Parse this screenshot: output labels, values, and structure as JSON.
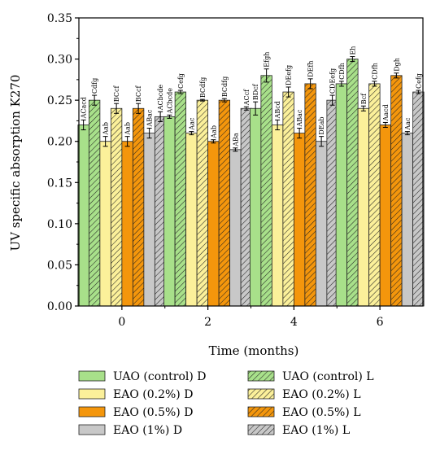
{
  "chart_data": {
    "type": "bar",
    "xlabel": "Time (months)",
    "ylabel": "UV specific absorption K270",
    "ylim": [
      0,
      0.35
    ],
    "yticks": [
      0.0,
      0.05,
      0.1,
      0.15,
      0.2,
      0.25,
      0.3,
      0.35
    ],
    "categories": [
      "0",
      "2",
      "4",
      "6"
    ],
    "legend_position": "bottom",
    "grid": false,
    "series": [
      {
        "name": "UAO (control) D",
        "color": "#a8e08a",
        "pattern": "solid",
        "values": [
          0.22,
          0.23,
          0.24,
          0.27
        ],
        "errors": [
          0.006,
          0.002,
          0.008,
          0.003
        ],
        "labels": [
          "ACacd",
          "ACbcde",
          "BDcf",
          "CDfh"
        ]
      },
      {
        "name": "UAO (control) L",
        "color": "#a8e08a",
        "pattern": "hatch",
        "values": [
          0.25,
          0.26,
          0.28,
          0.3
        ],
        "errors": [
          0.006,
          0.002,
          0.008,
          0.003
        ],
        "labels": [
          "Cdfg",
          "Cefg",
          "Efgh",
          "Eh"
        ]
      },
      {
        "name": "EAO (0.2%) D",
        "color": "#fbf09a",
        "pattern": "solid",
        "values": [
          0.2,
          0.21,
          0.22,
          0.24
        ],
        "errors": [
          0.006,
          0.002,
          0.006,
          0.003
        ],
        "labels": [
          "Aab",
          "Aac",
          "ABcd",
          "Bcf"
        ]
      },
      {
        "name": "EAO (0.2%) L",
        "color": "#fbf09a",
        "pattern": "hatch",
        "values": [
          0.24,
          0.25,
          0.26,
          0.27
        ],
        "errors": [
          0.006,
          0.001,
          0.006,
          0.003
        ],
        "labels": [
          "BCcf",
          "BCdfg",
          "DEefg",
          "CDfh"
        ]
      },
      {
        "name": "EAO (0.5%) D",
        "color": "#f4960c",
        "pattern": "solid",
        "values": [
          0.2,
          0.2,
          0.21,
          0.22
        ],
        "errors": [
          0.006,
          0.002,
          0.006,
          0.003
        ],
        "labels": [
          "Aab",
          "Aab",
          "ABac",
          "Aacd"
        ]
      },
      {
        "name": "EAO (0.5%) L",
        "color": "#f4960c",
        "pattern": "hatch",
        "values": [
          0.24,
          0.25,
          0.27,
          0.28
        ],
        "errors": [
          0.006,
          0.002,
          0.006,
          0.003
        ],
        "labels": [
          "BCcf",
          "BCdfg",
          "DEfh",
          "Dgh"
        ]
      },
      {
        "name": "EAO (1%) D",
        "color": "#c8c8c8",
        "pattern": "solid",
        "values": [
          0.21,
          0.19,
          0.2,
          0.21
        ],
        "errors": [
          0.006,
          0.002,
          0.006,
          0.002
        ],
        "labels": [
          "ABac",
          "ABa",
          "DEab",
          "Aac"
        ]
      },
      {
        "name": "EAO (1%) L",
        "color": "#c8c8c8",
        "pattern": "hatch",
        "values": [
          0.23,
          0.24,
          0.25,
          0.26
        ],
        "errors": [
          0.006,
          0.002,
          0.006,
          0.002
        ],
        "labels": [
          "ACbcde",
          "ACcf",
          "CDEefg",
          "Cefg"
        ]
      }
    ]
  }
}
